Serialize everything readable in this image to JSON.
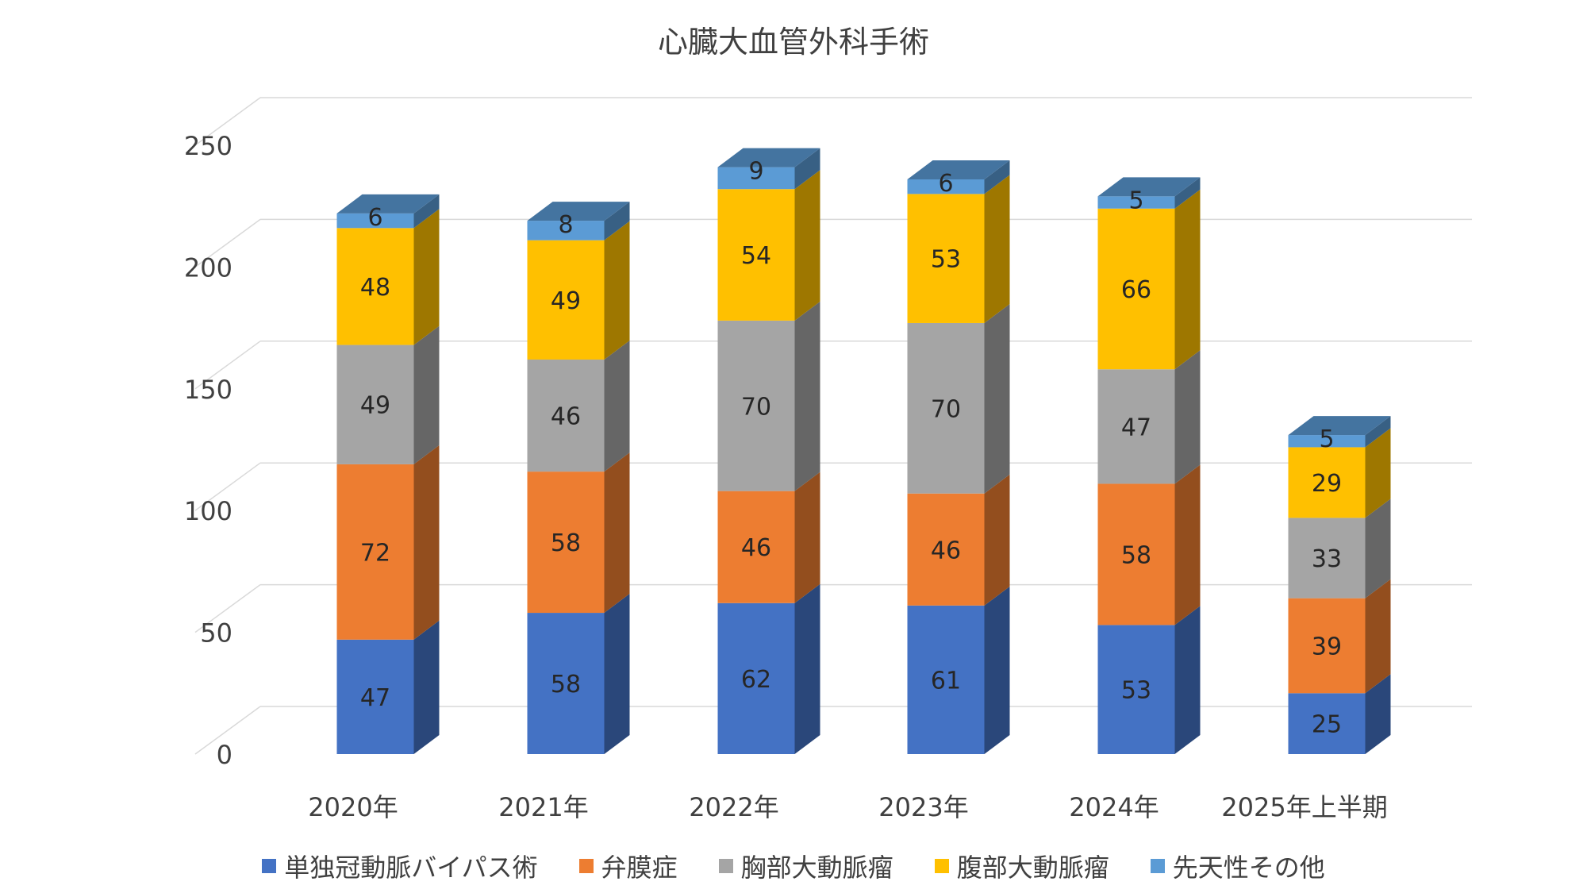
{
  "chart_data": {
    "type": "bar",
    "stacked": true,
    "style_3d": true,
    "title": "心臓大血管外科手術",
    "categories": [
      "2020年",
      "2021年",
      "2022年",
      "2023年",
      "2024年",
      "2025年上半期"
    ],
    "series": [
      {
        "name": "単独冠動脈バイパス術",
        "color": "#4472C4",
        "values": [
          47,
          58,
          62,
          61,
          53,
          25
        ]
      },
      {
        "name": "弁膜症",
        "color": "#ED7D31",
        "values": [
          72,
          58,
          46,
          46,
          58,
          39
        ]
      },
      {
        "name": "胸部大動脈瘤",
        "color": "#A5A5A5",
        "values": [
          49,
          46,
          70,
          70,
          47,
          33
        ]
      },
      {
        "name": "腹部大動脈瘤",
        "color": "#FFC000",
        "values": [
          48,
          49,
          54,
          53,
          66,
          29
        ]
      },
      {
        "name": "先天性その他",
        "color": "#5B9BD5",
        "values": [
          6,
          8,
          9,
          6,
          5,
          5
        ]
      }
    ],
    "ylim": [
      0,
      250
    ],
    "yticks": [
      0,
      50,
      100,
      150,
      200,
      250
    ],
    "grid": true,
    "legend": "bottom",
    "data_labels": true
  }
}
